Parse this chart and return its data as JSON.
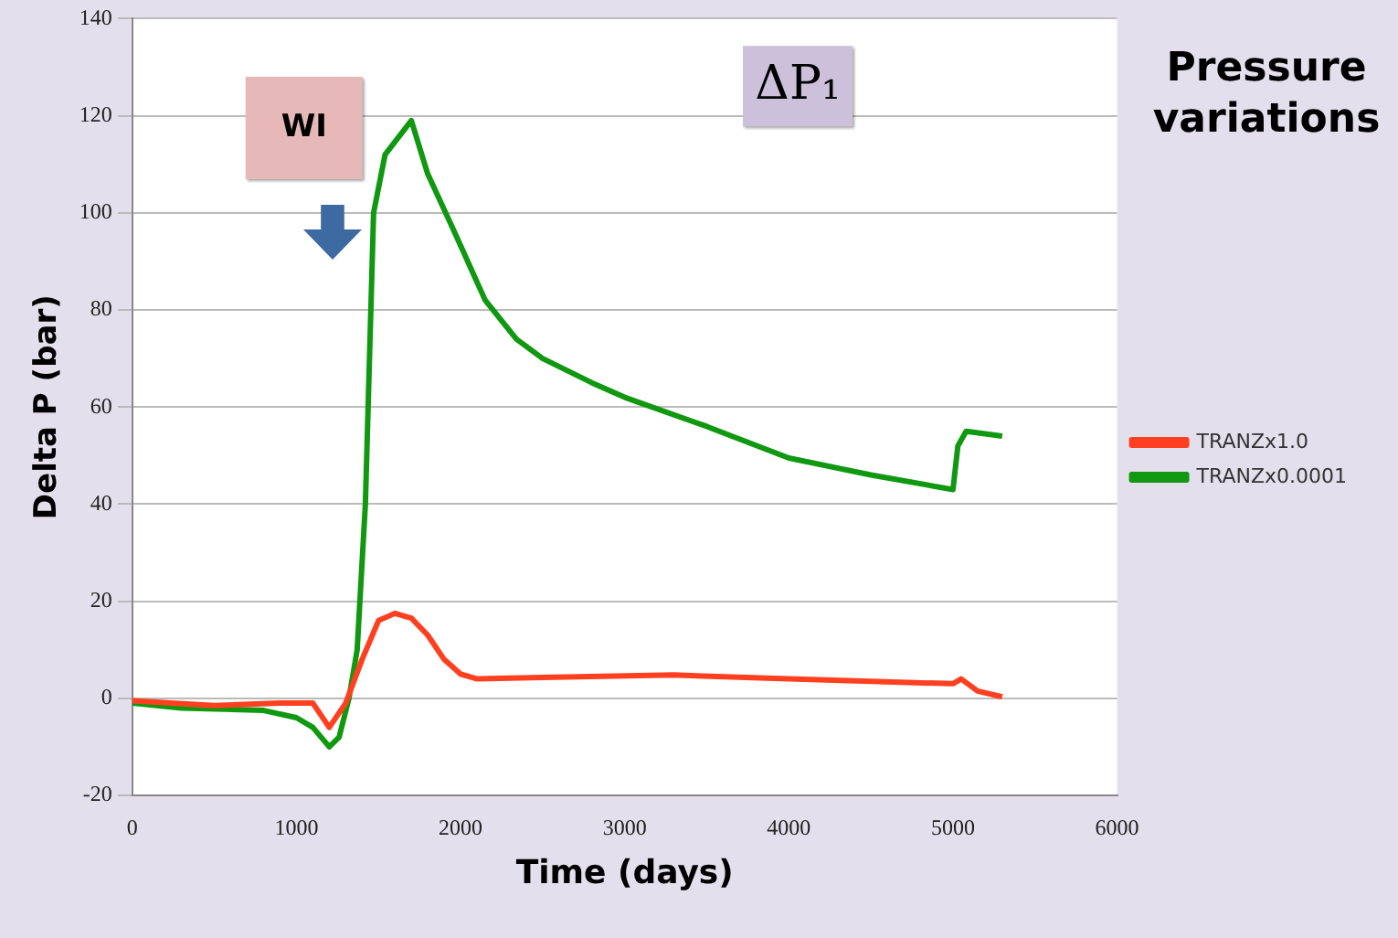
{
  "chart_data": {
    "type": "line",
    "title": "Pressure variations",
    "xlabel": "Time (days)",
    "ylabel": "Delta P (bar)",
    "annotations": [
      "WI",
      "ΔP₁"
    ],
    "xlim": [
      0,
      6000
    ],
    "xticks": [
      0,
      1000,
      2000,
      3000,
      4000,
      5000,
      6000
    ],
    "ylim": [
      -20,
      140
    ],
    "yticks": [
      -20,
      0,
      20,
      40,
      60,
      80,
      100,
      120,
      140
    ],
    "grid": "y",
    "legend": "right",
    "marker": "none",
    "line_style": "solid",
    "series": [
      {
        "name": "TRANZx1.0",
        "color": "#ff4020",
        "x": [
          0,
          500,
          900,
          1100,
          1200,
          1300,
          1400,
          1500,
          1600,
          1700,
          1800,
          1900,
          2000,
          2100,
          2500,
          3300,
          4000,
          5000,
          5050,
          5150,
          5300
        ],
        "values": [
          -0.5,
          -1.5,
          -1,
          -1,
          -6,
          -1,
          8,
          16,
          17.5,
          16.5,
          13,
          8,
          5,
          4,
          4.3,
          4.8,
          4,
          3,
          4,
          1.5,
          0.3
        ]
      },
      {
        "name": "TRANZx0.0001",
        "color": "#109810",
        "x": [
          0,
          300,
          800,
          1000,
          1100,
          1200,
          1260,
          1320,
          1370,
          1420,
          1470,
          1540,
          1700,
          1800,
          1950,
          2150,
          2340,
          2500,
          2800,
          3000,
          3500,
          4000,
          4500,
          5000,
          5030,
          5080,
          5300
        ],
        "values": [
          -1,
          -2,
          -2.5,
          -4,
          -6,
          -10,
          -8,
          0,
          10,
          40,
          100,
          112,
          119,
          108,
          97,
          82,
          74,
          70,
          65,
          62,
          56,
          49.5,
          46,
          43,
          52,
          55,
          54
        ]
      }
    ]
  }
}
